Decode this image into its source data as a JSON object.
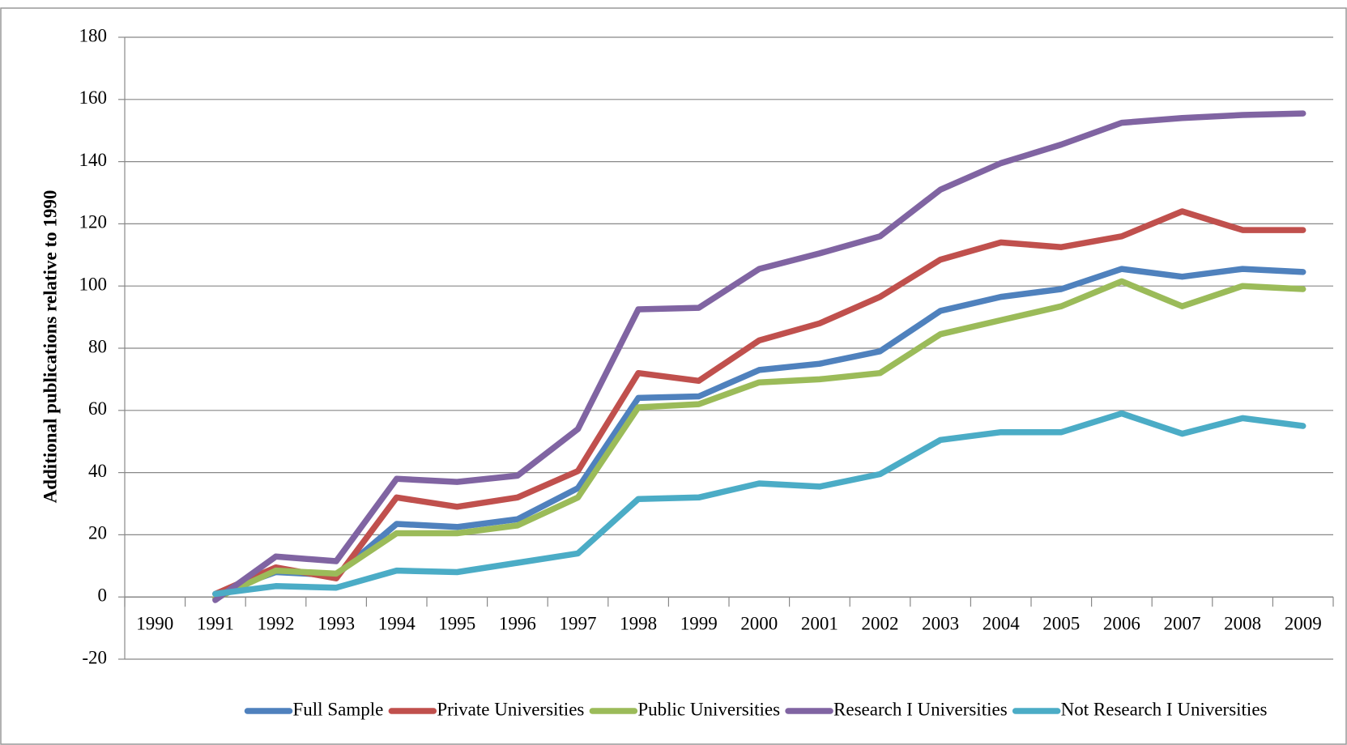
{
  "chart_data": {
    "type": "line",
    "y_label": "Additional publications relative to 1990",
    "categories": [
      "1990",
      "1991",
      "1992",
      "1993",
      "1994",
      "1995",
      "1996",
      "1997",
      "1998",
      "1999",
      "2000",
      "2001",
      "2002",
      "2003",
      "2004",
      "2005",
      "2006",
      "2007",
      "2008",
      "2009"
    ],
    "ylim": [
      -20,
      180
    ],
    "yticks": [
      -20,
      0,
      20,
      40,
      60,
      80,
      100,
      120,
      140,
      160,
      180
    ],
    "grid": true,
    "legend": "bottom",
    "series": [
      {
        "name": "Full Sample",
        "color": "#4f81bd",
        "values": [
          null,
          1,
          8,
          7,
          23.5,
          22.5,
          25,
          35,
          64,
          64.5,
          73,
          75,
          79,
          92,
          96.5,
          99,
          105.5,
          103,
          105.5,
          104.5
        ]
      },
      {
        "name": "Private Universities",
        "color": "#c0504d",
        "values": [
          null,
          1,
          9.5,
          6,
          32,
          29,
          32,
          40.5,
          72,
          69.5,
          82.5,
          88,
          96.5,
          108.5,
          114,
          112.5,
          116,
          124,
          118,
          118
        ]
      },
      {
        "name": "Public Universities",
        "color": "#9bbb59",
        "values": [
          null,
          -0.5,
          8.5,
          7.5,
          20.5,
          20.5,
          23,
          32,
          61,
          62,
          69,
          70,
          72,
          84.5,
          89,
          93.5,
          101.5,
          93.5,
          100,
          99
        ]
      },
      {
        "name": "Research I Universities",
        "color": "#8064a2",
        "values": [
          null,
          -1,
          13,
          11.5,
          38,
          37,
          39,
          54,
          92.5,
          93,
          105.5,
          110.5,
          116,
          131,
          139.5,
          145.5,
          152.5,
          154,
          155,
          155.5
        ]
      },
      {
        "name": "Not Research I Universities",
        "color": "#4bacc6",
        "values": [
          null,
          1,
          3.5,
          3,
          8.5,
          8,
          11,
          14,
          31.5,
          32,
          36.5,
          35.5,
          39.5,
          50.5,
          53,
          53,
          59,
          52.5,
          57.5,
          55
        ]
      }
    ]
  }
}
